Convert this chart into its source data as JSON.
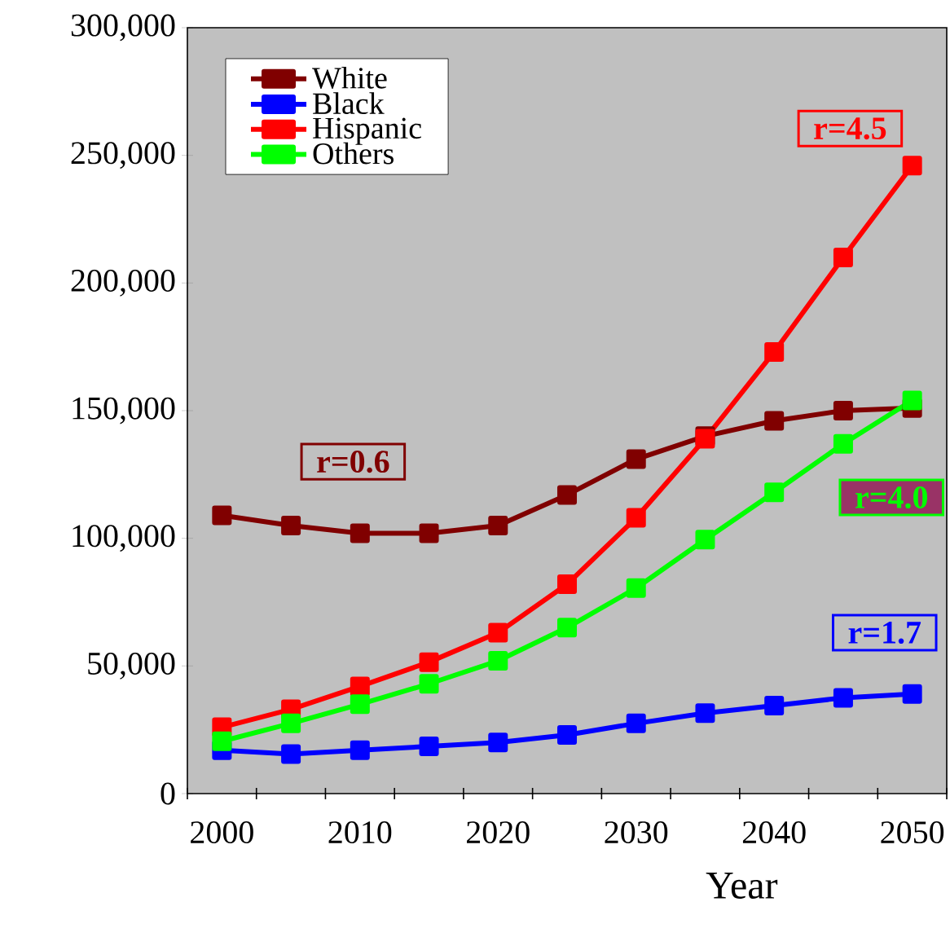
{
  "chart_data": {
    "type": "line",
    "xlabel": "Year",
    "categories": [
      "2000",
      null,
      "2010",
      null,
      "2020",
      null,
      "2030",
      null,
      "2040",
      null,
      "2050"
    ],
    "series": [
      {
        "name": "White",
        "color": "#800000",
        "values": [
          109000,
          105000,
          102000,
          102000,
          105000,
          117000,
          131000,
          140000,
          146000,
          150000,
          151000
        ]
      },
      {
        "name": "Black",
        "color": "#0000ff",
        "values": [
          17000,
          15500,
          17000,
          18500,
          20000,
          23000,
          27500,
          31500,
          34500,
          37500,
          39000
        ]
      },
      {
        "name": "Hispanic",
        "color": "#ff0000",
        "values": [
          26000,
          33000,
          42000,
          51500,
          63000,
          82000,
          108000,
          139000,
          173000,
          210000,
          246000
        ]
      },
      {
        "name": "Others",
        "color": "#00ff00",
        "values": [
          20500,
          27500,
          35000,
          43000,
          52000,
          65000,
          80500,
          99500,
          118000,
          137000,
          154000
        ]
      }
    ],
    "ylim": [
      0,
      300000
    ],
    "yticks": [
      {
        "value": 0,
        "label": "0"
      },
      {
        "value": 50000,
        "label": "50,000"
      },
      {
        "value": 100000,
        "label": "100,000"
      },
      {
        "value": 150000,
        "label": "150,000"
      },
      {
        "value": 200000,
        "label": "200,000"
      },
      {
        "value": 250000,
        "label": "250,000"
      },
      {
        "value": 300000,
        "label": "300,000"
      }
    ],
    "annotations": [
      "r=0.6",
      "r=1.7",
      "r=4.5",
      "r=4.0"
    ],
    "legend": "top left",
    "marker": "square",
    "line_style": "solid",
    "grid": false
  }
}
